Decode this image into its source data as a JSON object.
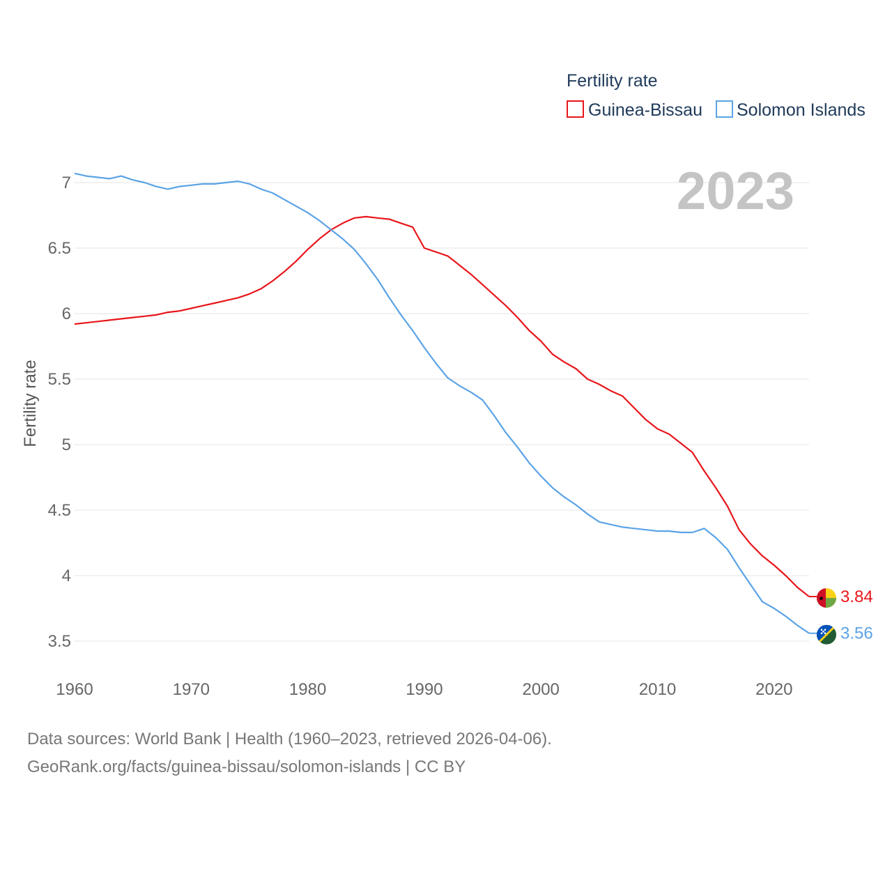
{
  "chart_data": {
    "type": "line",
    "legend_title": "Fertility rate",
    "ylabel": "Fertility rate",
    "xlabel": "",
    "year_badge": "2023",
    "xlim": [
      1960,
      2023
    ],
    "ylim": [
      3.3,
      7.1
    ],
    "x_ticks": [
      1960,
      1970,
      1980,
      1990,
      2000,
      2010,
      2020
    ],
    "y_ticks": [
      3.5,
      4,
      4.5,
      5,
      5.5,
      6,
      6.5,
      7
    ],
    "legend_position": "top-right",
    "series": [
      {
        "name": "Guinea-Bissau",
        "color": "#e8161b",
        "end_label": "3.84",
        "flag_icon": "guinea-bissau-flag-icon",
        "x": [
          1960,
          1961,
          1962,
          1963,
          1964,
          1965,
          1966,
          1967,
          1968,
          1969,
          1970,
          1971,
          1972,
          1973,
          1974,
          1975,
          1976,
          1977,
          1978,
          1979,
          1980,
          1981,
          1982,
          1983,
          1984,
          1985,
          1986,
          1987,
          1988,
          1989,
          1990,
          1991,
          1992,
          1993,
          1994,
          1995,
          1996,
          1997,
          1998,
          1999,
          2000,
          2001,
          2002,
          2003,
          2004,
          2005,
          2006,
          2007,
          2008,
          2009,
          2010,
          2011,
          2012,
          2013,
          2014,
          2015,
          2016,
          2017,
          2018,
          2019,
          2020,
          2021,
          2022,
          2023
        ],
        "values": [
          5.92,
          5.93,
          5.94,
          5.95,
          5.96,
          5.97,
          5.98,
          5.99,
          6.01,
          6.02,
          6.04,
          6.06,
          6.08,
          6.1,
          6.12,
          6.15,
          6.19,
          6.25,
          6.32,
          6.4,
          6.49,
          6.57,
          6.64,
          6.69,
          6.73,
          6.74,
          6.73,
          6.72,
          6.69,
          6.66,
          6.5,
          6.47,
          6.44,
          6.37,
          6.3,
          6.22,
          6.14,
          6.06,
          5.97,
          5.87,
          5.79,
          5.69,
          5.63,
          5.58,
          5.5,
          5.46,
          5.41,
          5.37,
          5.28,
          5.19,
          5.12,
          5.08,
          5.01,
          4.94,
          4.8,
          4.67,
          4.53,
          4.35,
          4.24,
          4.15,
          4.08,
          4.0,
          3.91,
          3.84
        ]
      },
      {
        "name": "Solomon Islands",
        "color": "#5ba3e6",
        "end_label": "3.56",
        "flag_icon": "solomon-islands-flag-icon",
        "x": [
          1960,
          1961,
          1962,
          1963,
          1964,
          1965,
          1966,
          1967,
          1968,
          1969,
          1970,
          1971,
          1972,
          1973,
          1974,
          1975,
          1976,
          1977,
          1978,
          1979,
          1980,
          1981,
          1982,
          1983,
          1984,
          1985,
          1986,
          1987,
          1988,
          1989,
          1990,
          1991,
          1992,
          1993,
          1994,
          1995,
          1996,
          1997,
          1998,
          1999,
          2000,
          2001,
          2002,
          2003,
          2004,
          2005,
          2006,
          2007,
          2008,
          2009,
          2010,
          2011,
          2012,
          2013,
          2014,
          2015,
          2016,
          2017,
          2018,
          2019,
          2020,
          2021,
          2022,
          2023
        ],
        "values": [
          7.07,
          7.05,
          7.04,
          7.03,
          7.05,
          7.02,
          7.0,
          6.97,
          6.95,
          6.97,
          6.98,
          6.99,
          6.99,
          7.0,
          7.01,
          6.99,
          6.95,
          6.92,
          6.87,
          6.82,
          6.77,
          6.71,
          6.64,
          6.57,
          6.49,
          6.38,
          6.26,
          6.12,
          5.99,
          5.87,
          5.74,
          5.62,
          5.51,
          5.45,
          5.4,
          5.34,
          5.22,
          5.09,
          4.98,
          4.86,
          4.76,
          4.67,
          4.6,
          4.54,
          4.47,
          4.41,
          4.39,
          4.37,
          4.36,
          4.35,
          4.34,
          4.34,
          4.33,
          4.33,
          4.36,
          4.29,
          4.2,
          4.06,
          3.93,
          3.8,
          3.75,
          3.69,
          3.62,
          3.56
        ]
      }
    ]
  },
  "source": {
    "line1": "Data sources: World Bank | Health (1960–2023, retrieved 2026-04-06).",
    "line2": "GeoRank.org/facts/guinea-bissau/solomon-islands | CC BY"
  }
}
